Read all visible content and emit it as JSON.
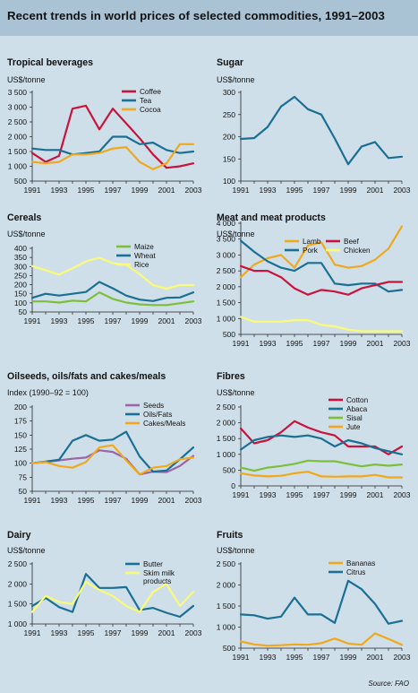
{
  "header": {
    "title": "Recent trends in world prices of selected commodities, 1991–2003"
  },
  "source": "Source: FAO",
  "colors": {
    "background": "#cfdfe9",
    "header": "#a9c3d4"
  },
  "chart_data": [
    {
      "type": "line",
      "title": "Tropical beverages",
      "ylabel": "US$/tonne",
      "x": [
        1991,
        1992,
        1993,
        1994,
        1995,
        1996,
        1997,
        1998,
        1999,
        2000,
        2001,
        2002,
        2003
      ],
      "xticks": [
        1991,
        1993,
        1995,
        1997,
        1999,
        2001,
        2003
      ],
      "yticks": [
        500,
        1000,
        1500,
        2000,
        2500,
        3000,
        3500
      ],
      "yticklabels": [
        "500",
        "1 000",
        "1 500",
        "2 000",
        "2 500",
        "3 000",
        "3 500"
      ],
      "ylim": [
        500,
        3500
      ],
      "legend_rows": [
        [
          0
        ],
        [
          1
        ],
        [
          2
        ]
      ],
      "series": [
        {
          "name": "Coffee",
          "color": "#c8143c",
          "values": [
            1450,
            1150,
            1350,
            2950,
            3050,
            2250,
            2950,
            2450,
            1950,
            1400,
            950,
            1000,
            1100
          ]
        },
        {
          "name": "Tea",
          "color": "#1a6f94",
          "values": [
            1600,
            1550,
            1550,
            1400,
            1450,
            1500,
            2000,
            2000,
            1750,
            1800,
            1550,
            1450,
            1500
          ]
        },
        {
          "name": "Cocoa",
          "color": "#f0a81c",
          "values": [
            1150,
            1100,
            1150,
            1400,
            1400,
            1450,
            1600,
            1650,
            1150,
            900,
            1100,
            1750,
            1750
          ]
        }
      ]
    },
    {
      "type": "line",
      "title": "Sugar",
      "ylabel": "US$/tonne",
      "x": [
        1991,
        1992,
        1993,
        1994,
        1995,
        1996,
        1997,
        1998,
        1999,
        2000,
        2001,
        2002,
        2003
      ],
      "xticks": [
        1991,
        1993,
        1995,
        1997,
        1999,
        2001,
        2003
      ],
      "yticks": [
        100,
        150,
        200,
        250,
        300
      ],
      "yticklabels": [
        "100",
        "150",
        "200",
        "250",
        "300"
      ],
      "ylim": [
        100,
        300
      ],
      "legend_rows": [],
      "series": [
        {
          "name": "",
          "color": "#1a6f94",
          "values": [
            195,
            197,
            222,
            268,
            290,
            262,
            250,
            196,
            138,
            178,
            188,
            152,
            155
          ]
        }
      ]
    },
    {
      "type": "line",
      "title": "Cereals",
      "ylabel": "US$/tonne",
      "x": [
        1991,
        1992,
        1993,
        1994,
        1995,
        1996,
        1997,
        1998,
        1999,
        2000,
        2001,
        2002,
        2003
      ],
      "xticks": [
        1991,
        1993,
        1995,
        1997,
        1999,
        2001,
        2003
      ],
      "yticks": [
        50,
        100,
        150,
        200,
        250,
        300,
        350,
        400
      ],
      "yticklabels": [
        "50",
        "100",
        "150",
        "200",
        "250",
        "300",
        "350",
        "400"
      ],
      "ylim": [
        50,
        400
      ],
      "legend_rows": [
        [
          0
        ],
        [
          1
        ],
        [
          2
        ]
      ],
      "series": [
        {
          "name": "Maize",
          "color": "#7cbf3a",
          "values": [
            108,
            108,
            102,
            112,
            108,
            158,
            122,
            102,
            92,
            88,
            88,
            98,
            108
          ]
        },
        {
          "name": "Wheat",
          "color": "#1a6f94",
          "values": [
            128,
            150,
            140,
            150,
            160,
            215,
            180,
            140,
            118,
            110,
            128,
            130,
            158
          ]
        },
        {
          "name": "Rice",
          "color": "#fafa78",
          "values": [
            302,
            280,
            255,
            290,
            328,
            348,
            318,
            310,
            258,
            198,
            178,
            198,
            198
          ]
        }
      ]
    },
    {
      "type": "line",
      "title": "Meat and meat products",
      "ylabel": "US$/tonne",
      "x": [
        1991,
        1992,
        1993,
        1994,
        1995,
        1996,
        1997,
        1998,
        1999,
        2000,
        2001,
        2002,
        2003
      ],
      "xticks": [
        1991,
        1993,
        1995,
        1997,
        1999,
        2001,
        2003
      ],
      "yticks": [
        500,
        1000,
        1500,
        2000,
        2500,
        3000,
        3500,
        4000
      ],
      "yticklabels": [
        "500",
        "1 000",
        "1 500",
        "2 000",
        "2 500",
        "3 000",
        "3 500",
        "4 000"
      ],
      "ylim": [
        500,
        4000
      ],
      "legend_rows": [
        [
          0,
          2
        ],
        [
          1,
          3
        ]
      ],
      "series": [
        {
          "name": "Lamb",
          "color": "#f0a81c",
          "values": [
            2300,
            2700,
            2900,
            3000,
            2600,
            3300,
            3400,
            2700,
            2600,
            2650,
            2850,
            3200,
            3900
          ]
        },
        {
          "name": "Pork",
          "color": "#1a6f94",
          "values": [
            3450,
            3100,
            2800,
            2600,
            2500,
            2750,
            2750,
            2100,
            2050,
            2100,
            2100,
            1850,
            1900
          ]
        },
        {
          "name": "Beef",
          "color": "#c8143c",
          "values": [
            2650,
            2500,
            2500,
            2300,
            1950,
            1750,
            1900,
            1850,
            1750,
            1950,
            2050,
            2150,
            2150
          ]
        },
        {
          "name": "Chicken",
          "color": "#fafa78",
          "values": [
            1050,
            900,
            900,
            900,
            950,
            950,
            800,
            750,
            650,
            600,
            600,
            600,
            600
          ]
        }
      ]
    },
    {
      "type": "line",
      "title": "Oilseeds, oils/fats and cakes/meals",
      "ylabel": "Index (1990–92 = 100)",
      "x": [
        1991,
        1992,
        1993,
        1994,
        1995,
        1996,
        1997,
        1998,
        1999,
        2000,
        2001,
        2002,
        2003
      ],
      "xticks": [
        1991,
        1993,
        1995,
        1997,
        1999,
        2001,
        2003
      ],
      "yticks": [
        50,
        75,
        100,
        125,
        150,
        175,
        200
      ],
      "yticklabels": [
        "50",
        "75",
        "100",
        "125",
        "150",
        "175",
        "200"
      ],
      "ylim": [
        50,
        200
      ],
      "legend_rows": [
        [
          0
        ],
        [
          1
        ],
        [
          2
        ]
      ],
      "series": [
        {
          "name": "Seeds",
          "color": "#9a66a8",
          "values": [
            100,
            102,
            105,
            108,
            110,
            123,
            120,
            108,
            80,
            85,
            84,
            95,
            113
          ]
        },
        {
          "name": "Oils/Fats",
          "color": "#1a6f94",
          "values": [
            100,
            103,
            106,
            140,
            150,
            140,
            142,
            156,
            112,
            85,
            87,
            107,
            128
          ]
        },
        {
          "name": "Cakes/Meals",
          "color": "#f0a81c",
          "values": [
            100,
            102,
            95,
            92,
            102,
            128,
            132,
            105,
            80,
            92,
            95,
            107,
            110
          ]
        }
      ]
    },
    {
      "type": "line",
      "title": "Fibres",
      "ylabel": "US$/tonne",
      "x": [
        1991,
        1992,
        1993,
        1994,
        1995,
        1996,
        1997,
        1998,
        1999,
        2000,
        2001,
        2002,
        2003
      ],
      "xticks": [
        1991,
        1993,
        1995,
        1997,
        1999,
        2001,
        2003
      ],
      "yticks": [
        0,
        500,
        1000,
        1500,
        2000,
        2500
      ],
      "yticklabels": [
        "0",
        "500",
        "1 000",
        "1 500",
        "2 000",
        "2 500"
      ],
      "ylim": [
        0,
        2500
      ],
      "legend_rows": [
        [
          0
        ],
        [
          1
        ],
        [
          2
        ],
        [
          3
        ]
      ],
      "series": [
        {
          "name": "Cotton",
          "color": "#c8143c",
          "values": [
            1820,
            1350,
            1450,
            1700,
            2050,
            1850,
            1700,
            1600,
            1250,
            1250,
            1250,
            1000,
            1250
          ]
        },
        {
          "name": "Abaca",
          "color": "#1a6f94",
          "values": [
            1150,
            1450,
            1550,
            1600,
            1550,
            1600,
            1500,
            1250,
            1450,
            1350,
            1200,
            1100,
            1000
          ]
        },
        {
          "name": "Sisal",
          "color": "#7cbf3a",
          "values": [
            580,
            480,
            580,
            630,
            700,
            800,
            780,
            780,
            700,
            620,
            680,
            640,
            680
          ]
        },
        {
          "name": "Jute",
          "color": "#f0a81c",
          "values": [
            400,
            330,
            300,
            320,
            400,
            450,
            300,
            290,
            300,
            300,
            350,
            270,
            270
          ]
        }
      ]
    },
    {
      "type": "line",
      "title": "Dairy",
      "ylabel": "US$/tonne",
      "x": [
        1991,
        1992,
        1993,
        1994,
        1995,
        1996,
        1997,
        1998,
        1999,
        2000,
        2001,
        2002,
        2003
      ],
      "xticks": [
        1991,
        1993,
        1995,
        1997,
        1999,
        2001,
        2003
      ],
      "yticks": [
        1000,
        1500,
        2000,
        2500
      ],
      "yticklabels": [
        "1 000",
        "1 500",
        "2 000",
        "2 500"
      ],
      "ylim": [
        1000,
        2500
      ],
      "legend_rows": [
        [
          0
        ],
        [
          1
        ]
      ],
      "series": [
        {
          "name": "Butter",
          "color": "#1a6f94",
          "values": [
            1450,
            1650,
            1420,
            1300,
            2250,
            1900,
            1900,
            1920,
            1350,
            1400,
            1280,
            1180,
            1450
          ]
        },
        {
          "name": "Skim milk products",
          "label_lines": [
            "Skim milk",
            "products"
          ],
          "color": "#fafa78",
          "values": [
            1300,
            1700,
            1550,
            1500,
            2050,
            1850,
            1700,
            1450,
            1300,
            1800,
            2000,
            1450,
            1800
          ]
        }
      ]
    },
    {
      "type": "line",
      "title": "Fruits",
      "ylabel": "US$/tonne",
      "x": [
        1991,
        1992,
        1993,
        1994,
        1995,
        1996,
        1997,
        1998,
        1999,
        2000,
        2001,
        2002,
        2003
      ],
      "xticks": [
        1991,
        1993,
        1995,
        1997,
        1999,
        2001,
        2003
      ],
      "yticks": [
        500,
        1000,
        1500,
        2000,
        2500
      ],
      "yticklabels": [
        "500",
        "1 000",
        "1 500",
        "2 000",
        "2 500"
      ],
      "ylim": [
        500,
        2500
      ],
      "legend_rows": [
        [
          0
        ],
        [
          1
        ]
      ],
      "series": [
        {
          "name": "Bananas",
          "color": "#f0a81c",
          "values": [
            660,
            590,
            560,
            570,
            590,
            580,
            620,
            730,
            610,
            580,
            850,
            720,
            580
          ]
        },
        {
          "name": "Citrus",
          "color": "#1a6f94",
          "values": [
            1300,
            1280,
            1200,
            1250,
            1700,
            1300,
            1300,
            1100,
            2100,
            1900,
            1550,
            1080,
            1150
          ]
        }
      ]
    }
  ]
}
